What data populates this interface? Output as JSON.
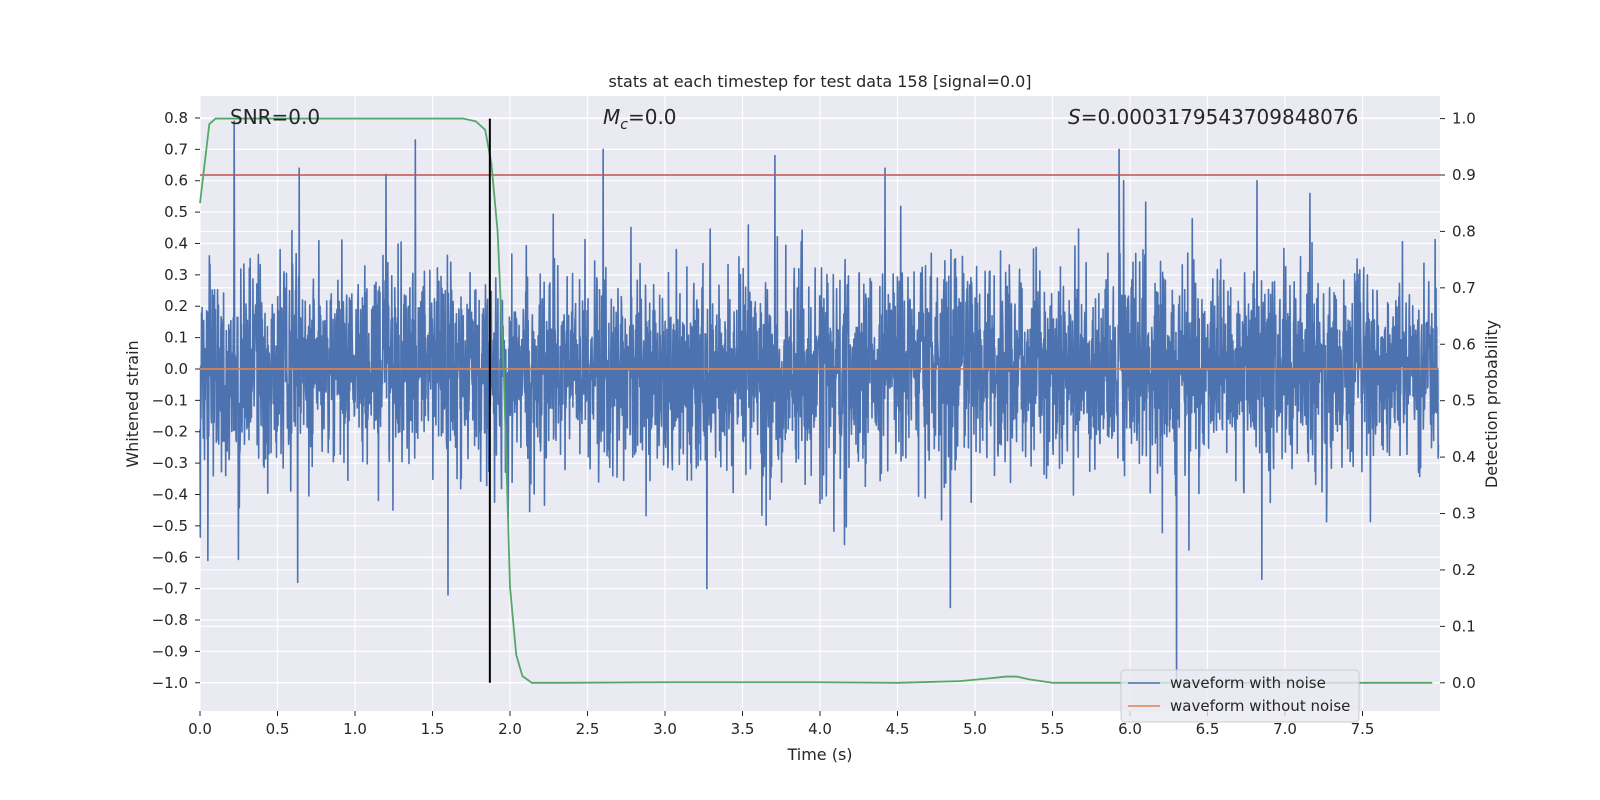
{
  "chart_data": {
    "type": "line",
    "title": "stats at each timestep for test data 158 [signal=0.0]",
    "xlabel": "Time (s)",
    "ylabel_left": "Whitened strain",
    "ylabel_right": "Detection probability",
    "xlim": [
      0,
      8
    ],
    "ylim_left": [
      -1.09,
      0.87
    ],
    "ylim_right": [
      -0.05,
      1.04
    ],
    "x_ticks": [
      0.0,
      0.5,
      1.0,
      1.5,
      2.0,
      2.5,
      3.0,
      3.5,
      4.0,
      4.5,
      5.0,
      5.5,
      6.0,
      6.5,
      7.0,
      7.5
    ],
    "x_tick_labels": [
      "0.0",
      "0.5",
      "1.0",
      "1.5",
      "2.0",
      "2.5",
      "3.0",
      "3.5",
      "4.0",
      "4.5",
      "5.0",
      "5.5",
      "6.0",
      "6.5",
      "7.0",
      "7.5"
    ],
    "y_left_ticks": [
      0.8,
      0.7,
      0.6,
      0.5,
      0.4,
      0.3,
      0.2,
      0.1,
      0.0,
      -0.1,
      -0.2,
      -0.3,
      -0.4,
      -0.5,
      -0.6,
      -0.7,
      -0.8,
      -0.9,
      -1.0
    ],
    "y_left_tick_labels": [
      "0.8",
      "0.7",
      "0.6",
      "0.5",
      "0.4",
      "0.3",
      "0.2",
      "0.1",
      "0.0",
      "−0.1",
      "−0.2",
      "−0.3",
      "−0.4",
      "−0.5",
      "−0.6",
      "−0.7",
      "−0.8",
      "−0.9",
      "−1.0"
    ],
    "y_right_ticks": [
      1.0,
      0.9,
      0.8,
      0.7,
      0.6,
      0.5,
      0.4,
      0.3,
      0.2,
      0.1,
      0.0
    ],
    "y_right_tick_labels": [
      "1.0",
      "0.9",
      "0.8",
      "0.7",
      "0.6",
      "0.5",
      "0.4",
      "0.3",
      "0.2",
      "0.1",
      "0.0"
    ],
    "annotations": {
      "snr": "SNR=0.0",
      "mc_symbol": "M",
      "mc_sub": "c",
      "mc_value": "=0.0",
      "s_symbol": "S",
      "s_value": "=0.0003179543709848076"
    },
    "threshold": {
      "value": 0.9,
      "axis": "right"
    },
    "marker_time": 1.87,
    "legend": {
      "position": "lower-right",
      "entries": [
        {
          "label": "waveform with noise",
          "color": "#4c72b0"
        },
        {
          "label": "waveform without noise",
          "color": "#dd8452"
        }
      ]
    },
    "series": [
      {
        "name": "waveform with noise",
        "axis": "left",
        "color": "#4c72b0",
        "description": "whitened strain noise, approx 4096 samples over 0-8 s, range about -1.0 to 0.79",
        "notable_peaks": [
          {
            "x": 0.22,
            "y": 0.79
          },
          {
            "x": 0.64,
            "y": 0.64
          },
          {
            "x": 1.2,
            "y": 0.62
          },
          {
            "x": 1.39,
            "y": 0.73
          },
          {
            "x": 2.6,
            "y": 0.7
          },
          {
            "x": 3.71,
            "y": 0.68
          },
          {
            "x": 4.42,
            "y": 0.64
          },
          {
            "x": 5.93,
            "y": 0.7
          },
          {
            "x": 6.82,
            "y": 0.6
          }
        ],
        "notable_troughs": [
          {
            "x": 0.05,
            "y": -0.61
          },
          {
            "x": 0.63,
            "y": -0.68
          },
          {
            "x": 1.6,
            "y": -0.72
          },
          {
            "x": 3.27,
            "y": -0.7
          },
          {
            "x": 4.84,
            "y": -0.76
          },
          {
            "x": 6.3,
            "y": -1.0
          },
          {
            "x": 6.85,
            "y": -0.67
          }
        ]
      },
      {
        "name": "waveform without noise",
        "axis": "left",
        "color": "#dd8452",
        "x": [
          0,
          8
        ],
        "y": [
          0.0,
          0.0
        ]
      },
      {
        "name": "detection probability",
        "axis": "right",
        "color": "#55a868",
        "x": [
          0.0,
          0.03,
          0.06,
          0.1,
          0.15,
          0.3,
          0.6,
          1.0,
          1.4,
          1.7,
          1.78,
          1.84,
          1.88,
          1.92,
          1.96,
          2.0,
          2.04,
          2.08,
          2.14,
          2.3,
          3.0,
          4.0,
          4.5,
          4.9,
          5.1,
          5.2,
          5.27,
          5.35,
          5.5,
          6.0,
          7.0,
          7.95
        ],
        "y": [
          0.85,
          0.92,
          0.99,
          1.0,
          1.0,
          1.0,
          1.0,
          1.0,
          1.0,
          1.0,
          0.995,
          0.98,
          0.92,
          0.8,
          0.55,
          0.17,
          0.05,
          0.012,
          0.0,
          0.0,
          0.001,
          0.001,
          0.0,
          0.003,
          0.008,
          0.011,
          0.011,
          0.006,
          0.0,
          0.0,
          0.0,
          0.0
        ]
      }
    ]
  }
}
